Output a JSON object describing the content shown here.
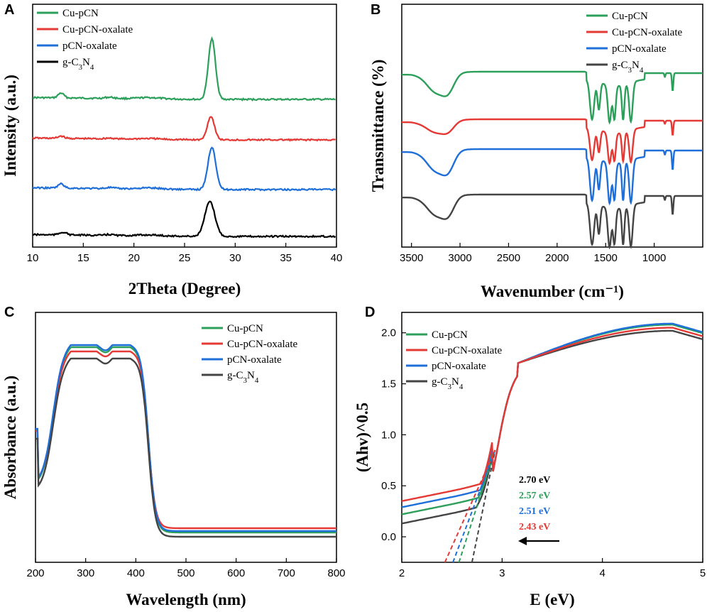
{
  "colors": {
    "Cu-pCN": "#2ca05a",
    "Cu-pCN-oxalate": "#e53935",
    "pCN-oxalate": "#1e6fd9",
    "g-C3N4 (A)": "#000000",
    "g-C3N4": "#444444"
  },
  "chart_data": [
    {
      "panel": "A",
      "type": "line",
      "title": "",
      "xlabel": "2Theta (Degree)",
      "ylabel": "Intensity (a.u.)",
      "xlim": [
        10,
        40
      ],
      "xticks": [
        10,
        15,
        20,
        25,
        30,
        35,
        40
      ],
      "yticks_shown": false,
      "legend": {
        "position": "top-left",
        "entries": [
          "Cu-pCN",
          "Cu-pCN-oxalate",
          "pCN-oxalate",
          "g-C3N4"
        ]
      },
      "series": [
        {
          "name": "Cu-pCN",
          "offset": 3.0,
          "peaks": [
            {
              "x": 12.8,
              "h": 0.08,
              "w": 0.4
            },
            {
              "x": 27.7,
              "h": 1.0,
              "w": 0.5
            }
          ]
        },
        {
          "name": "Cu-pCN-oxalate",
          "offset": 2.0,
          "peaks": [
            {
              "x": 12.8,
              "h": 0.06,
              "w": 0.4
            },
            {
              "x": 27.6,
              "h": 0.6,
              "w": 0.5
            }
          ]
        },
        {
          "name": "pCN-oxalate",
          "offset": 1.0,
          "peaks": [
            {
              "x": 12.8,
              "h": 0.08,
              "w": 0.4
            },
            {
              "x": 27.7,
              "h": 0.8,
              "w": 0.55
            }
          ]
        },
        {
          "name": "g-C3N4",
          "offset": 0.0,
          "peaks": [
            {
              "x": 13.0,
              "h": 0.06,
              "w": 0.5
            },
            {
              "x": 27.5,
              "h": 0.75,
              "w": 0.7
            }
          ]
        }
      ]
    },
    {
      "panel": "B",
      "type": "line",
      "title": "",
      "xlabel": "Wavenumber (cm⁻¹)",
      "ylabel": "Transmittance (%)",
      "xlim": [
        3600,
        500
      ],
      "xticks": [
        3500,
        3000,
        2500,
        2000,
        1500,
        1000
      ],
      "yticks_shown": false,
      "legend": {
        "position": "top-right",
        "entries": [
          "Cu-pCN",
          "Cu-pCN-oxalate",
          "pCN-oxalate",
          "g-C3N4"
        ]
      },
      "series": [
        {
          "name": "Cu-pCN",
          "offset": 3.0,
          "baseline": 1.0,
          "band_3200_depth": 0.22,
          "fingerprint_depth": 0.75
        },
        {
          "name": "Cu-pCN-oxalate",
          "offset": 2.0,
          "baseline": 1.0,
          "band_3200_depth": 0.14,
          "fingerprint_depth": 0.45
        },
        {
          "name": "pCN-oxalate",
          "offset": 1.0,
          "baseline": 1.0,
          "band_3200_depth": 0.25,
          "fingerprint_depth": 0.9
        },
        {
          "name": "g-C3N4",
          "offset": 0.0,
          "baseline": 1.0,
          "band_3200_depth": 0.2,
          "fingerprint_depth": 0.85
        }
      ]
    },
    {
      "panel": "C",
      "type": "line",
      "title": "",
      "xlabel": "Wavelength (nm)",
      "ylabel": "Absorbance (a.u.)",
      "xlim": [
        200,
        800
      ],
      "xticks": [
        200,
        300,
        400,
        500,
        600,
        700,
        800
      ],
      "yticks_shown": false,
      "legend": {
        "position": "top-right",
        "entries": [
          "Cu-pCN",
          "Cu-pCN-oxalate",
          "pCN-oxalate",
          "g-C3N4"
        ]
      },
      "series": [
        {
          "name": "Cu-pCN",
          "plateau": 0.95,
          "tail": 0.06
        },
        {
          "name": "Cu-pCN-oxalate",
          "plateau": 0.92,
          "tail": 0.08
        },
        {
          "name": "pCN-oxalate",
          "plateau": 0.96,
          "tail": 0.07
        },
        {
          "name": "g-C3N4",
          "plateau": 0.88,
          "tail": 0.04
        }
      ]
    },
    {
      "panel": "D",
      "type": "line",
      "title": "",
      "xlabel": "E (eV)",
      "ylabel": "(Ahv)^0.5",
      "xlim": [
        2,
        5
      ],
      "ylim": [
        -0.25,
        2.2
      ],
      "xticks": [
        2,
        3,
        4,
        5
      ],
      "yticks": [
        0.0,
        0.5,
        1.0,
        1.5,
        2.0
      ],
      "legend": {
        "position": "top-left",
        "entries": [
          "Cu-pCN",
          "Cu-pCN-oxalate",
          "pCN-oxalate",
          "g-C3N4"
        ]
      },
      "annotations": [
        {
          "text": "2.70 eV",
          "series": "g-C3N4"
        },
        {
          "text": "2.57 eV",
          "series": "Cu-pCN"
        },
        {
          "text": "2.51 eV",
          "series": "pCN-oxalate"
        },
        {
          "text": "2.43 eV",
          "series": "Cu-pCN-oxalate"
        }
      ],
      "series": [
        {
          "name": "Cu-pCN",
          "y_at_2": 0.22,
          "bandgap": 2.57,
          "max": 2.08
        },
        {
          "name": "Cu-pCN-oxalate",
          "y_at_2": 0.35,
          "bandgap": 2.43,
          "max": 2.05
        },
        {
          "name": "pCN-oxalate",
          "y_at_2": 0.29,
          "bandgap": 2.51,
          "max": 2.09
        },
        {
          "name": "g-C3N4",
          "y_at_2": 0.13,
          "bandgap": 2.7,
          "max": 2.02
        }
      ]
    }
  ],
  "panels": {
    "A": {
      "label": "A"
    },
    "B": {
      "label": "B"
    },
    "C": {
      "label": "C"
    },
    "D": {
      "label": "D"
    }
  },
  "legend_labels": [
    "Cu-pCN",
    "Cu-pCN-oxalate",
    "pCN-oxalate",
    "g-C3N4"
  ],
  "d_annotations": [
    "2.70 eV",
    "2.57 eV",
    "2.51 eV",
    "2.43 eV"
  ]
}
